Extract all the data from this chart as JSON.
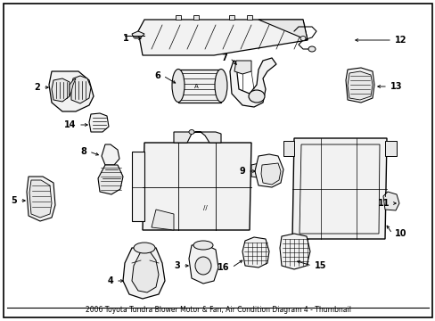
{
  "background_color": "#ffffff",
  "fig_width": 4.89,
  "fig_height": 3.6,
  "dpi": 100,
  "border_color": "#000000",
  "line_color": "#000000",
  "fill_light": "#f2f2f2",
  "fill_mid": "#e8e8e8",
  "fill_dark": "#d8d8d8",
  "label_fontsize": 7,
  "caption": "2006 Toyota Tundra Blower Motor & Fan, Air Condition Diagram 4 - Thumbnail",
  "caption_fontsize": 5.5
}
